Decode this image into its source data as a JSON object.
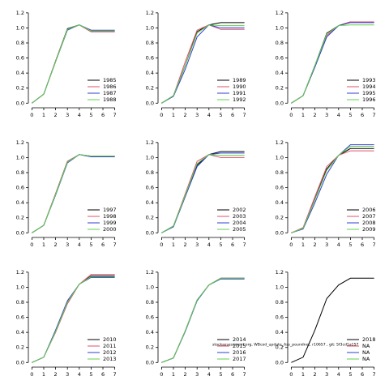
{
  "footnote": "stockassessment.org, WBcod_update_Ass_poundnet, r10657 , git: 5f3cd1a157",
  "chart_data": [
    {
      "type": "line",
      "x": [
        0,
        1,
        2,
        3,
        4,
        5,
        6,
        7
      ],
      "xlim": [
        -0.3,
        7.3
      ],
      "xticks": [
        0,
        1,
        2,
        3,
        4,
        5,
        6,
        7
      ],
      "ylim": [
        -0.04,
        1.22
      ],
      "yticks": [
        {
          "value": 0,
          "label": "0.0"
        },
        0.2,
        0.4,
        0.6,
        0.8,
        {
          "value": 1,
          "label": "1.0"
        },
        1.2
      ],
      "series": [
        {
          "name": "1985",
          "color": "#000000",
          "values": [
            0,
            0.12,
            0.56,
            0.99,
            1.04,
            0.95,
            0.95,
            0.95
          ]
        },
        {
          "name": "1986",
          "color": "#df536b",
          "values": [
            0,
            0.12,
            0.56,
            0.98,
            1.04,
            0.95,
            0.95,
            0.95
          ]
        },
        {
          "name": "1987",
          "color": "#2f3fd0",
          "values": [
            0,
            0.12,
            0.55,
            0.97,
            1.04,
            0.97,
            0.97,
            0.97
          ]
        },
        {
          "name": "1988",
          "color": "#61d04f",
          "values": [
            0,
            0.12,
            0.55,
            0.98,
            1.04,
            0.96,
            0.96,
            0.96
          ]
        }
      ]
    },
    {
      "type": "line",
      "x": [
        0,
        1,
        2,
        3,
        4,
        5,
        6,
        7
      ],
      "xlim": [
        -0.3,
        7.3
      ],
      "xticks": [
        0,
        1,
        2,
        3,
        4,
        5,
        6,
        7
      ],
      "ylim": [
        -0.04,
        1.22
      ],
      "yticks": [
        {
          "value": 0,
          "label": "0.0"
        },
        0.2,
        0.4,
        0.6,
        0.8,
        {
          "value": 1,
          "label": "1.0"
        },
        1.2
      ],
      "series": [
        {
          "name": "1989",
          "color": "#000000",
          "values": [
            0,
            0.1,
            0.5,
            0.95,
            1.04,
            1.07,
            1.07,
            1.07
          ]
        },
        {
          "name": "1990",
          "color": "#df536b",
          "values": [
            0,
            0.1,
            0.55,
            0.97,
            1.04,
            0.98,
            0.98,
            0.98
          ]
        },
        {
          "name": "1991",
          "color": "#2f3fd0",
          "values": [
            0,
            0.09,
            0.45,
            0.88,
            1.04,
            1.0,
            1.0,
            1.0
          ]
        },
        {
          "name": "1992",
          "color": "#61d04f",
          "values": [
            0,
            0.1,
            0.5,
            0.93,
            1.04,
            1.03,
            1.03,
            1.03
          ]
        }
      ]
    },
    {
      "type": "line",
      "x": [
        0,
        1,
        2,
        3,
        4,
        5,
        6,
        7
      ],
      "xlim": [
        -0.3,
        7.3
      ],
      "xticks": [
        0,
        1,
        2,
        3,
        4,
        5,
        6,
        7
      ],
      "ylim": [
        -0.04,
        1.22
      ],
      "yticks": [
        {
          "value": 0,
          "label": "0.0"
        },
        0.2,
        0.4,
        0.6,
        0.8,
        {
          "value": 1,
          "label": "1.0"
        },
        1.2
      ],
      "series": [
        {
          "name": "1993",
          "color": "#000000",
          "values": [
            0,
            0.1,
            0.5,
            0.93,
            1.03,
            1.08,
            1.08,
            1.08
          ]
        },
        {
          "name": "1994",
          "color": "#df536b",
          "values": [
            0,
            0.1,
            0.48,
            0.9,
            1.03,
            1.08,
            1.08,
            1.08
          ]
        },
        {
          "name": "1995",
          "color": "#2f3fd0",
          "values": [
            0,
            0.1,
            0.48,
            0.88,
            1.03,
            1.07,
            1.07,
            1.07
          ]
        },
        {
          "name": "1996",
          "color": "#61d04f",
          "values": [
            0,
            0.1,
            0.5,
            0.92,
            1.03,
            1.04,
            1.04,
            1.04
          ]
        }
      ]
    },
    {
      "type": "line",
      "x": [
        0,
        1,
        2,
        3,
        4,
        5,
        6,
        7
      ],
      "xlim": [
        -0.3,
        7.3
      ],
      "xticks": [
        0,
        1,
        2,
        3,
        4,
        5,
        6,
        7
      ],
      "ylim": [
        -0.04,
        1.22
      ],
      "yticks": [
        {
          "value": 0,
          "label": "0.0"
        },
        0.2,
        0.4,
        0.6,
        0.8,
        {
          "value": 1,
          "label": "1.0"
        },
        1.2
      ],
      "series": [
        {
          "name": "1997",
          "color": "#000000",
          "values": [
            0,
            0.1,
            0.52,
            0.95,
            1.04,
            1.02,
            1.02,
            1.02
          ]
        },
        {
          "name": "1998",
          "color": "#df536b",
          "values": [
            0,
            0.1,
            0.52,
            0.95,
            1.04,
            1.02,
            1.02,
            1.02
          ]
        },
        {
          "name": "1999",
          "color": "#2f3fd0",
          "values": [
            0,
            0.1,
            0.5,
            0.93,
            1.04,
            1.01,
            1.01,
            1.01
          ]
        },
        {
          "name": "2000",
          "color": "#61d04f",
          "values": [
            0,
            0.1,
            0.51,
            0.94,
            1.04,
            1.02,
            1.02,
            1.02
          ]
        }
      ]
    },
    {
      "type": "line",
      "x": [
        0,
        1,
        2,
        3,
        4,
        5,
        6,
        7
      ],
      "xlim": [
        -0.3,
        7.3
      ],
      "xticks": [
        0,
        1,
        2,
        3,
        4,
        5,
        6,
        7
      ],
      "ylim": [
        -0.04,
        1.22
      ],
      "yticks": [
        {
          "value": 0,
          "label": "0.0"
        },
        0.2,
        0.4,
        0.6,
        0.8,
        {
          "value": 1,
          "label": "1.0"
        },
        1.2
      ],
      "series": [
        {
          "name": "2002",
          "color": "#000000",
          "values": [
            0,
            0.09,
            0.5,
            0.9,
            1.04,
            1.08,
            1.08,
            1.08
          ]
        },
        {
          "name": "2003",
          "color": "#df536b",
          "values": [
            0,
            0.09,
            0.52,
            0.95,
            1.04,
            1.0,
            1.0,
            1.0
          ]
        },
        {
          "name": "2004",
          "color": "#2f3fd0",
          "values": [
            0,
            0.08,
            0.48,
            0.88,
            1.04,
            1.06,
            1.06,
            1.06
          ]
        },
        {
          "name": "2005",
          "color": "#61d04f",
          "values": [
            0,
            0.09,
            0.5,
            0.92,
            1.04,
            1.03,
            1.03,
            1.03
          ]
        }
      ]
    },
    {
      "type": "line",
      "x": [
        0,
        1,
        2,
        3,
        4,
        5,
        6,
        7
      ],
      "xlim": [
        -0.3,
        7.3
      ],
      "xticks": [
        0,
        1,
        2,
        3,
        4,
        5,
        6,
        7
      ],
      "ylim": [
        -0.04,
        1.22
      ],
      "yticks": [
        {
          "value": 0,
          "label": "0.0"
        },
        0.2,
        0.4,
        0.6,
        0.8,
        {
          "value": 1,
          "label": "1.0"
        },
        1.2
      ],
      "series": [
        {
          "name": "2006",
          "color": "#000000",
          "values": [
            0,
            0.06,
            0.45,
            0.85,
            1.03,
            1.12,
            1.12,
            1.12
          ]
        },
        {
          "name": "2007",
          "color": "#df536b",
          "values": [
            0,
            0.07,
            0.48,
            0.88,
            1.03,
            1.09,
            1.09,
            1.09
          ]
        },
        {
          "name": "2008",
          "color": "#2f3fd0",
          "values": [
            0,
            0.05,
            0.4,
            0.78,
            1.03,
            1.17,
            1.17,
            1.17
          ]
        },
        {
          "name": "2009",
          "color": "#61d04f",
          "values": [
            0,
            0.06,
            0.44,
            0.83,
            1.03,
            1.15,
            1.15,
            1.15
          ]
        }
      ]
    },
    {
      "type": "line",
      "x": [
        0,
        1,
        2,
        3,
        4,
        5,
        6,
        7
      ],
      "xlim": [
        -0.3,
        7.3
      ],
      "xticks": [
        0,
        1,
        2,
        3,
        4,
        5,
        6,
        7
      ],
      "ylim": [
        -0.04,
        1.22
      ],
      "yticks": [
        {
          "value": 0,
          "label": "0.0"
        },
        0.2,
        0.4,
        0.6,
        0.8,
        {
          "value": 1,
          "label": "1.0"
        },
        1.2
      ],
      "series": [
        {
          "name": "2010",
          "color": "#000000",
          "values": [
            0,
            0.07,
            0.42,
            0.8,
            1.04,
            1.15,
            1.15,
            1.15
          ]
        },
        {
          "name": "2011",
          "color": "#df536b",
          "values": [
            0,
            0.07,
            0.4,
            0.78,
            1.04,
            1.17,
            1.17,
            1.17
          ]
        },
        {
          "name": "2012",
          "color": "#2f3fd0",
          "values": [
            0,
            0.07,
            0.43,
            0.82,
            1.04,
            1.13,
            1.13,
            1.13
          ]
        },
        {
          "name": "2013",
          "color": "#61d04f",
          "values": [
            0,
            0.07,
            0.41,
            0.8,
            1.04,
            1.14,
            1.14,
            1.14
          ]
        }
      ]
    },
    {
      "type": "line",
      "x": [
        0,
        1,
        2,
        3,
        4,
        5,
        6,
        7
      ],
      "xlim": [
        -0.3,
        7.3
      ],
      "xticks": [
        0,
        1,
        2,
        3,
        4,
        5,
        6,
        7
      ],
      "ylim": [
        -0.04,
        1.22
      ],
      "yticks": [
        {
          "value": 0,
          "label": "0.0"
        },
        0.2,
        0.4,
        0.6,
        0.8,
        {
          "value": 1,
          "label": "1.0"
        },
        1.2
      ],
      "series": [
        {
          "name": "2014",
          "color": "#000000",
          "values": [
            0,
            0.06,
            0.42,
            0.83,
            1.03,
            1.12,
            1.12,
            1.12
          ]
        },
        {
          "name": "2015",
          "color": "#df536b",
          "values": [
            0,
            0.06,
            0.42,
            0.83,
            1.03,
            1.12,
            1.12,
            1.12
          ]
        },
        {
          "name": "2016",
          "color": "#2f3fd0",
          "values": [
            0,
            0.06,
            0.41,
            0.82,
            1.03,
            1.11,
            1.11,
            1.11
          ]
        },
        {
          "name": "2017",
          "color": "#61d04f",
          "values": [
            0,
            0.06,
            0.42,
            0.83,
            1.03,
            1.12,
            1.12,
            1.12
          ]
        }
      ]
    },
    {
      "type": "line",
      "x": [
        0,
        1,
        2,
        3,
        4,
        5,
        6,
        7
      ],
      "xlim": [
        -0.3,
        7.3
      ],
      "xticks": [
        0,
        1,
        2,
        3,
        4,
        5,
        6,
        7
      ],
      "ylim": [
        -0.04,
        1.22
      ],
      "yticks": [
        {
          "value": 0,
          "label": "0.0"
        },
        0.2,
        0.4,
        0.6,
        0.8,
        {
          "value": 1,
          "label": "1.0"
        },
        1.2
      ],
      "series": [
        {
          "name": "2018",
          "color": "#000000",
          "values": [
            0,
            0.07,
            0.43,
            0.85,
            1.03,
            1.12,
            1.12,
            1.12
          ]
        },
        {
          "name": "NA",
          "color": "#df536b",
          "values": [
            null,
            null,
            null,
            null,
            null,
            null,
            null,
            null
          ]
        },
        {
          "name": "NA",
          "color": "#2f3fd0",
          "values": [
            null,
            null,
            null,
            null,
            null,
            null,
            null,
            null
          ]
        },
        {
          "name": "NA",
          "color": "#61d04f",
          "values": [
            null,
            null,
            null,
            null,
            null,
            null,
            null,
            null
          ]
        }
      ]
    }
  ]
}
